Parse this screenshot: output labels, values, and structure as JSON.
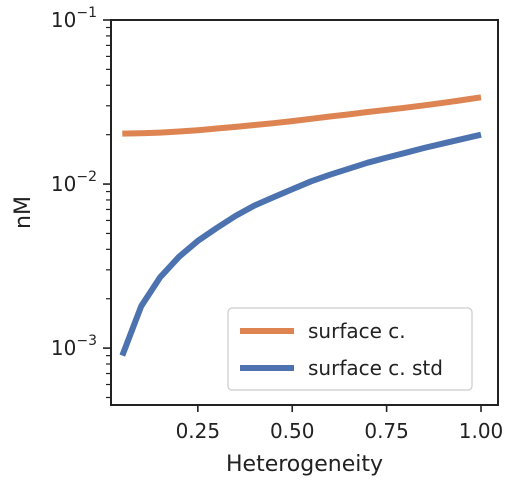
{
  "chart_data": {
    "type": "line",
    "xlabel": "Heterogeneity",
    "ylabel": "nM",
    "x_scale": "linear",
    "y_scale": "log",
    "xlim": [
      0.02,
      1.045
    ],
    "ylim": [
      0.00045,
      0.1
    ],
    "x_ticks": [
      0.25,
      0.5,
      0.75,
      1.0
    ],
    "x_tick_labels": [
      "0.25",
      "0.50",
      "0.75",
      "1.00"
    ],
    "y_major_ticks": [
      0.001,
      0.01,
      0.1
    ],
    "y_tick_labels": [
      "10",
      "10",
      "10"
    ],
    "y_tick_exponents": [
      "−3",
      "−2",
      "−1"
    ],
    "grid": false,
    "legend_position": "lower-right",
    "series": [
      {
        "name": "surface c.",
        "color": "#dd8452",
        "x": [
          0.05,
          0.1,
          0.15,
          0.2,
          0.25,
          0.3,
          0.35,
          0.4,
          0.45,
          0.5,
          0.55,
          0.6,
          0.65,
          0.7,
          0.75,
          0.8,
          0.85,
          0.9,
          0.95,
          1.0
        ],
        "values": [
          0.0203,
          0.0204,
          0.0206,
          0.0209,
          0.0213,
          0.0218,
          0.0223,
          0.0229,
          0.0235,
          0.0242,
          0.025,
          0.0258,
          0.0266,
          0.0275,
          0.0283,
          0.0292,
          0.0302,
          0.0313,
          0.0325,
          0.0338
        ]
      },
      {
        "name": "surface c. std",
        "color": "#4c72b0",
        "x": [
          0.05,
          0.1,
          0.15,
          0.2,
          0.25,
          0.3,
          0.35,
          0.4,
          0.45,
          0.5,
          0.55,
          0.6,
          0.65,
          0.7,
          0.75,
          0.8,
          0.85,
          0.9,
          0.95,
          1.0
        ],
        "values": [
          0.0009,
          0.0018,
          0.0027,
          0.0036,
          0.0045,
          0.0054,
          0.0064,
          0.0074,
          0.0083,
          0.0093,
          0.0104,
          0.0114,
          0.0124,
          0.0135,
          0.0145,
          0.0155,
          0.0166,
          0.0177,
          0.0188,
          0.02
        ]
      }
    ]
  }
}
